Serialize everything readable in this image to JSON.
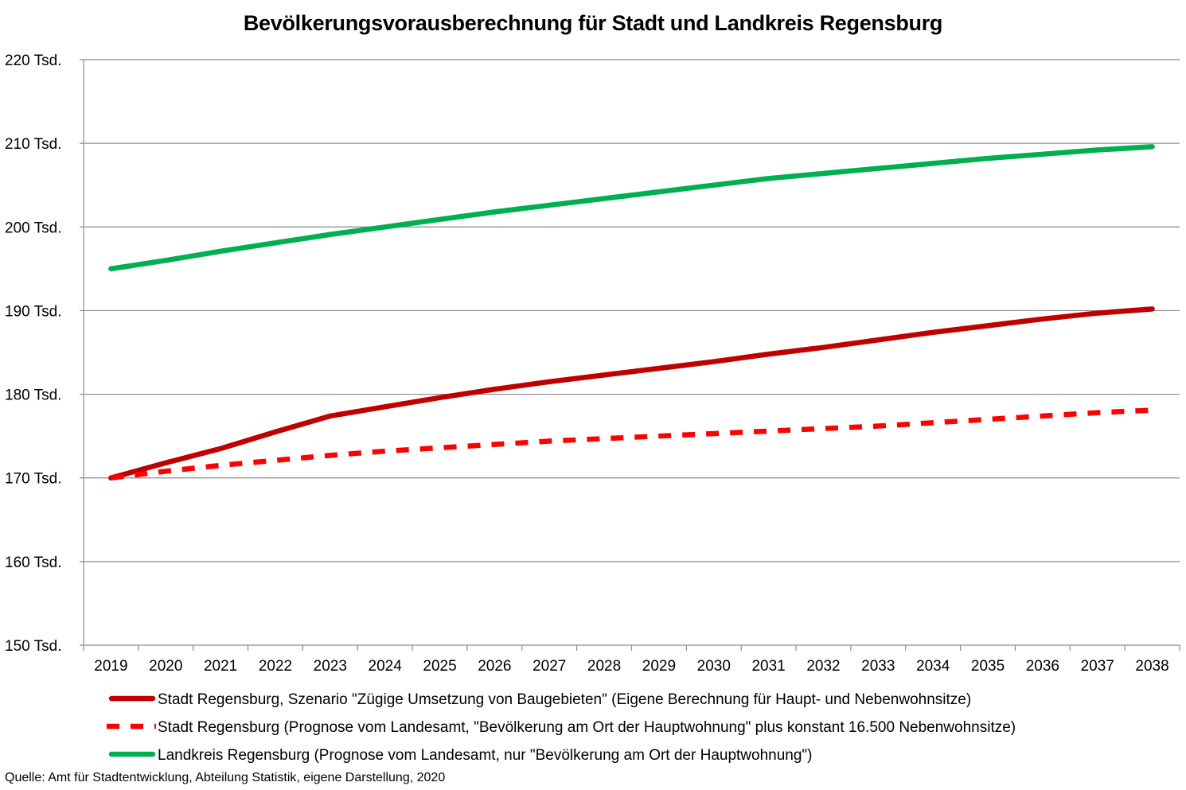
{
  "chart_data": {
    "type": "line",
    "title": "Bevölkerungsvorausberechnung für Stadt und Landkreis Regensburg",
    "x": [
      "2019",
      "2020",
      "2021",
      "2022",
      "2023",
      "2024",
      "2025",
      "2026",
      "2027",
      "2028",
      "2029",
      "2030",
      "2031",
      "2032",
      "2033",
      "2034",
      "2035",
      "2036",
      "2037",
      "2038"
    ],
    "y_ticks": [
      "150 Tsd.",
      "160 Tsd.",
      "170 Tsd.",
      "180 Tsd.",
      "190 Tsd.",
      "200 Tsd.",
      "210 Tsd.",
      "220 Tsd."
    ],
    "ylim": [
      150000,
      220000
    ],
    "grid": true,
    "legend_position": "bottom",
    "series": [
      {
        "name": "Stadt Regensburg, Szenario \"Zügige Umsetzung von Baugebieten\" (Eigene Berechnung für Haupt- und Nebenwohnsitze)",
        "color": "#c00000",
        "style": "solid",
        "values": [
          170000,
          171800,
          173500,
          175500,
          177400,
          178500,
          179600,
          180600,
          181500,
          182300,
          183100,
          183900,
          184800,
          185600,
          186500,
          187400,
          188200,
          189000,
          189700,
          190200
        ]
      },
      {
        "name": "Stadt Regensburg (Prognose vom Landesamt, \"Bevölkerung am Ort der Hauptwohnung\" plus konstant 16.500 Nebenwohnsitze)",
        "color": "#ff0000",
        "style": "dashed",
        "values": [
          170000,
          170800,
          171500,
          172100,
          172700,
          173200,
          173600,
          174000,
          174400,
          174700,
          175000,
          175300,
          175600,
          175900,
          176200,
          176600,
          177000,
          177400,
          177800,
          178100
        ]
      },
      {
        "name": "Landkreis Regensburg (Prognose vom Landesamt, nur \"Bevölkerung am Ort der Hauptwohnung\")",
        "color": "#00b050",
        "style": "solid",
        "values": [
          195000,
          196000,
          197100,
          198100,
          199100,
          200000,
          200900,
          201800,
          202600,
          203400,
          204200,
          205000,
          205800,
          206400,
          207000,
          207600,
          208200,
          208700,
          209200,
          209600
        ]
      }
    ]
  },
  "source": "Quelle: Amt für Stadtentwicklung, Abteilung Statistik, eigene Darstellung, 2020"
}
